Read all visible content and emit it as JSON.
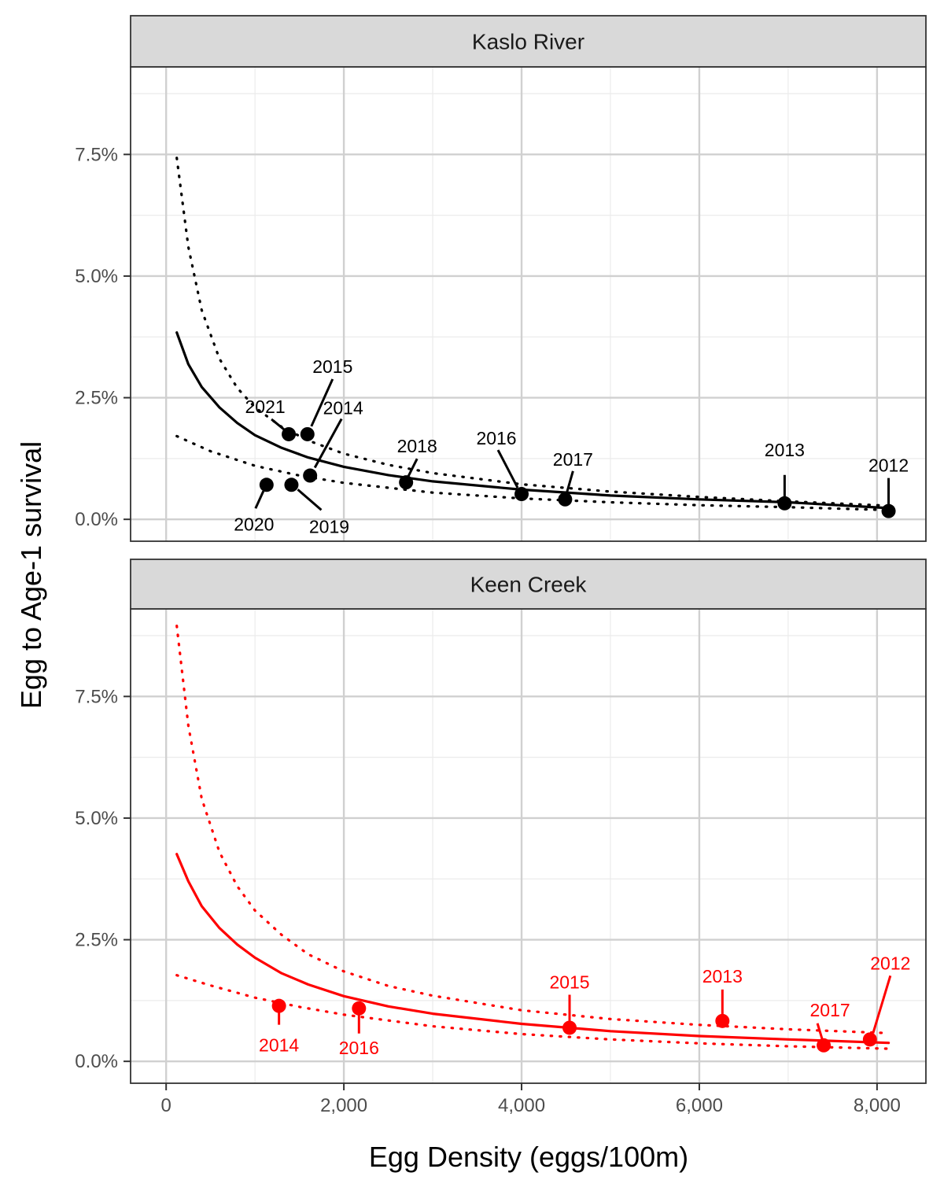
{
  "chart_data": {
    "type": "scatter",
    "xlabel": "Egg Density (eggs/100m)",
    "ylabel": "Egg to Age-1 survival",
    "xlim": [
      -400,
      8550
    ],
    "x_ticks": [
      0,
      2000,
      4000,
      6000,
      8000
    ],
    "x_tick_labels": [
      "0",
      "2,000",
      "4,000",
      "6,000",
      "8,000"
    ],
    "ylim": [
      -0.45,
      9.3
    ],
    "y_ticks": [
      0,
      2.5,
      5,
      7.5
    ],
    "y_tick_labels": [
      "0.0%",
      "2.5%",
      "5.0%",
      "7.5%"
    ],
    "grid": true,
    "panels": [
      {
        "title": "Kaslo River",
        "color": "#000000",
        "points": [
          {
            "year": "2012",
            "x": 8130,
            "y": 0.17
          },
          {
            "year": "2013",
            "x": 6960,
            "y": 0.33
          },
          {
            "year": "2014",
            "x": 1620,
            "y": 0.9
          },
          {
            "year": "2015",
            "x": 1590,
            "y": 1.75
          },
          {
            "year": "2016",
            "x": 4000,
            "y": 0.52
          },
          {
            "year": "2017",
            "x": 4490,
            "y": 0.41
          },
          {
            "year": "2018",
            "x": 2700,
            "y": 0.76
          },
          {
            "year": "2019",
            "x": 1410,
            "y": 0.71
          },
          {
            "year": "2020",
            "x": 1130,
            "y": 0.71
          },
          {
            "year": "2021",
            "x": 1380,
            "y": 1.75
          }
        ],
        "fit": {
          "x": [
            120,
            250,
            400,
            600,
            800,
            1000,
            1300,
            1600,
            2000,
            2500,
            3000,
            4000,
            5000,
            6000,
            7000,
            8130
          ],
          "y": [
            3.84,
            3.19,
            2.72,
            2.3,
            1.98,
            1.73,
            1.47,
            1.27,
            1.08,
            0.91,
            0.78,
            0.61,
            0.49,
            0.41,
            0.35,
            0.23
          ]
        },
        "upper": {
          "x": [
            120,
            250,
            400,
            600,
            800,
            1000,
            1300,
            1600,
            2000,
            2500,
            3000,
            4000,
            5000,
            6000,
            7000,
            8130
          ],
          "y": [
            7.43,
            5.6,
            4.3,
            3.3,
            2.7,
            2.3,
            1.9,
            1.62,
            1.35,
            1.12,
            0.95,
            0.72,
            0.57,
            0.46,
            0.37,
            0.28
          ]
        },
        "lower": {
          "x": [
            120,
            500,
            1000,
            1500,
            2000,
            3000,
            4000,
            5000,
            6000,
            7000,
            8130
          ],
          "y": [
            1.71,
            1.4,
            1.1,
            0.9,
            0.75,
            0.55,
            0.43,
            0.35,
            0.29,
            0.25,
            0.19
          ]
        }
      },
      {
        "title": "Keen Creek",
        "color": "#ff0000",
        "points": [
          {
            "year": "2012",
            "x": 7920,
            "y": 0.45
          },
          {
            "year": "2013",
            "x": 6260,
            "y": 0.83
          },
          {
            "year": "2014",
            "x": 1270,
            "y": 1.14
          },
          {
            "year": "2015",
            "x": 4540,
            "y": 0.69
          },
          {
            "year": "2016",
            "x": 2170,
            "y": 1.09
          },
          {
            "year": "2017",
            "x": 7400,
            "y": 0.33
          }
        ],
        "fit": {
          "x": [
            120,
            250,
            400,
            600,
            800,
            1000,
            1300,
            1600,
            2000,
            2500,
            3000,
            4000,
            5000,
            6000,
            7000,
            8130
          ],
          "y": [
            4.26,
            3.7,
            3.19,
            2.74,
            2.4,
            2.13,
            1.81,
            1.58,
            1.34,
            1.13,
            0.98,
            0.77,
            0.62,
            0.52,
            0.45,
            0.38
          ]
        },
        "upper": {
          "x": [
            120,
            250,
            400,
            600,
            800,
            1000,
            1300,
            1600,
            2000,
            2500,
            3000,
            4000,
            5000,
            6000,
            7000,
            8130
          ],
          "y": [
            8.95,
            6.9,
            5.4,
            4.3,
            3.6,
            3.1,
            2.6,
            2.2,
            1.85,
            1.55,
            1.35,
            1.05,
            0.87,
            0.75,
            0.66,
            0.58
          ]
        },
        "lower": {
          "x": [
            120,
            500,
            1000,
            1500,
            2000,
            3000,
            4000,
            5000,
            6000,
            7000,
            8130
          ],
          "y": [
            1.77,
            1.56,
            1.31,
            1.12,
            0.96,
            0.72,
            0.56,
            0.45,
            0.37,
            0.31,
            0.26
          ]
        }
      }
    ]
  }
}
